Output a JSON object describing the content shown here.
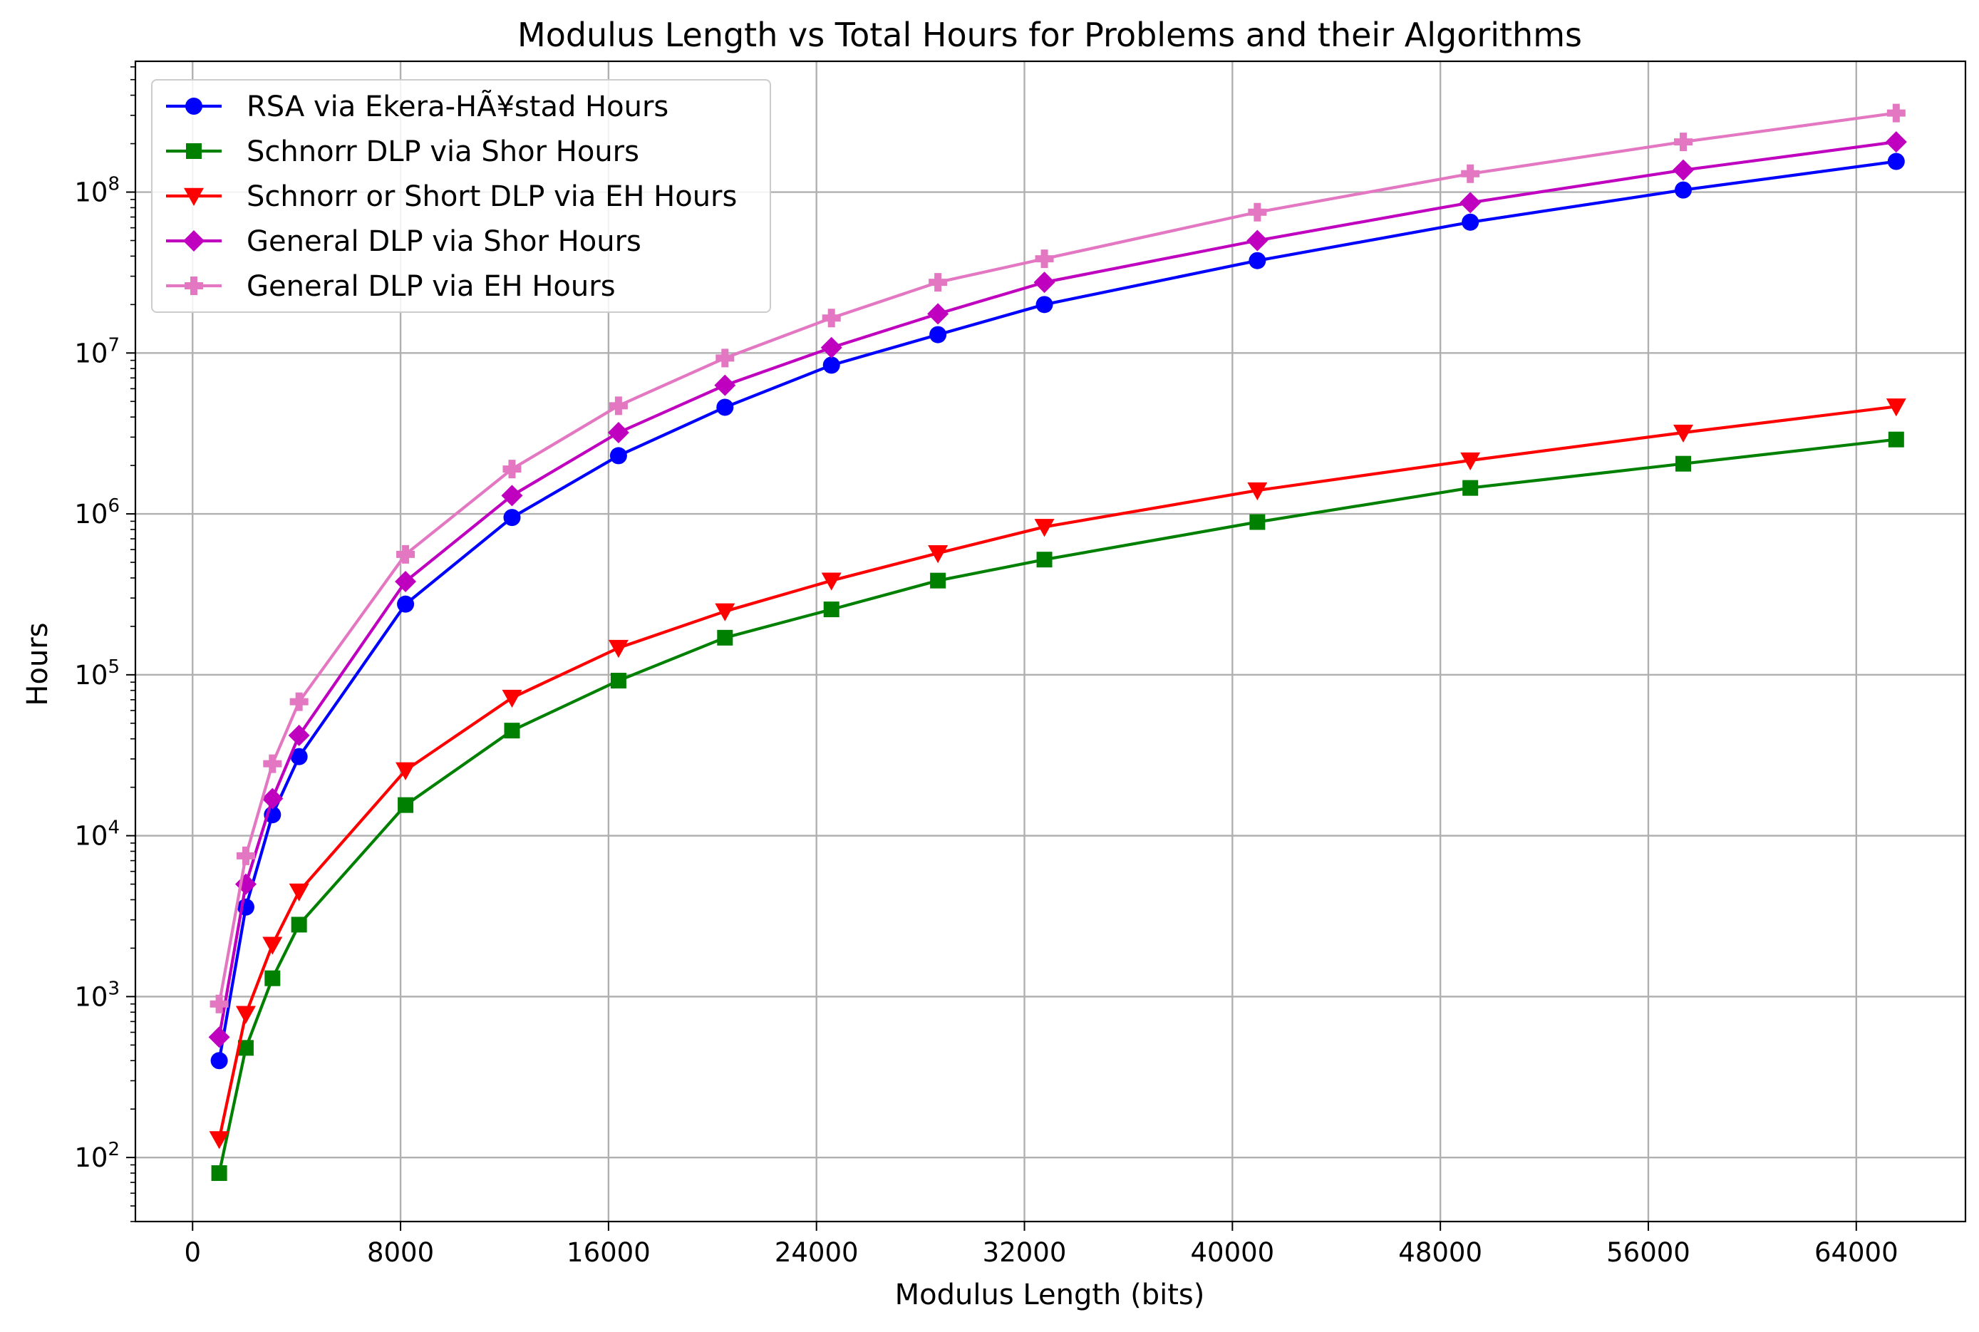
{
  "chart_data": {
    "type": "line",
    "title": "Modulus Length vs Total Hours for Problems and their Algorithms",
    "xlabel": "Modulus Length (bits)",
    "ylabel": "Hours",
    "x_ticks": [
      0,
      8000,
      16000,
      24000,
      32000,
      40000,
      48000,
      56000,
      64000
    ],
    "x_tick_labels": [
      "0",
      "8000",
      "16000",
      "24000",
      "32000",
      "40000",
      "48000",
      "56000",
      "64000"
    ],
    "y_tick_exponents": [
      2,
      3,
      4,
      5,
      6,
      7,
      8
    ],
    "y_tick_base": "10",
    "y_scale": "log",
    "xlim": [
      -2200,
      68200
    ],
    "ylim": [
      40,
      650000000
    ],
    "grid": true,
    "legend_position": "upper-left",
    "x": [
      1024,
      2048,
      3072,
      4096,
      8192,
      12288,
      16384,
      20480,
      24576,
      28672,
      32768,
      40960,
      49152,
      57344,
      65536
    ],
    "series": [
      {
        "name": "RSA via Ekera-HÃ¥stad Hours",
        "color": "#0000ff",
        "marker": "circle",
        "values": [
          400,
          3600,
          13500,
          31000,
          275000,
          950000,
          2300000,
          4600000,
          8400000,
          13000000,
          20000000,
          37500000,
          65000000,
          103000000,
          155000000
        ]
      },
      {
        "name": "Schnorr DLP via Shor Hours",
        "color": "#008000",
        "marker": "square",
        "values": [
          80,
          480,
          1300,
          2800,
          15500,
          45000,
          92000,
          170000,
          255000,
          385000,
          520000,
          890000,
          1450000,
          2050000,
          2900000
        ]
      },
      {
        "name": "Schnorr or Short DLP via EH Hours",
        "color": "#ff0000",
        "marker": "triangle-down",
        "values": [
          130,
          780,
          2100,
          4500,
          25500,
          72000,
          147000,
          248000,
          385000,
          570000,
          830000,
          1400000,
          2150000,
          3200000,
          4650000
        ]
      },
      {
        "name": "General DLP via Shor Hours",
        "color": "#bf00bf",
        "marker": "diamond",
        "values": [
          560,
          5000,
          17000,
          42000,
          380000,
          1300000,
          3200000,
          6300000,
          10800000,
          17500000,
          27500000,
          50000000,
          86000000,
          137000000,
          205000000
        ]
      },
      {
        "name": "General DLP via EH Hours",
        "color": "#e377c2",
        "marker": "plus",
        "values": [
          900,
          7500,
          28000,
          68000,
          560000,
          1900000,
          4700000,
          9300000,
          16500000,
          27500000,
          38500000,
          75000000,
          130000000,
          205000000,
          310000000
        ]
      }
    ]
  }
}
